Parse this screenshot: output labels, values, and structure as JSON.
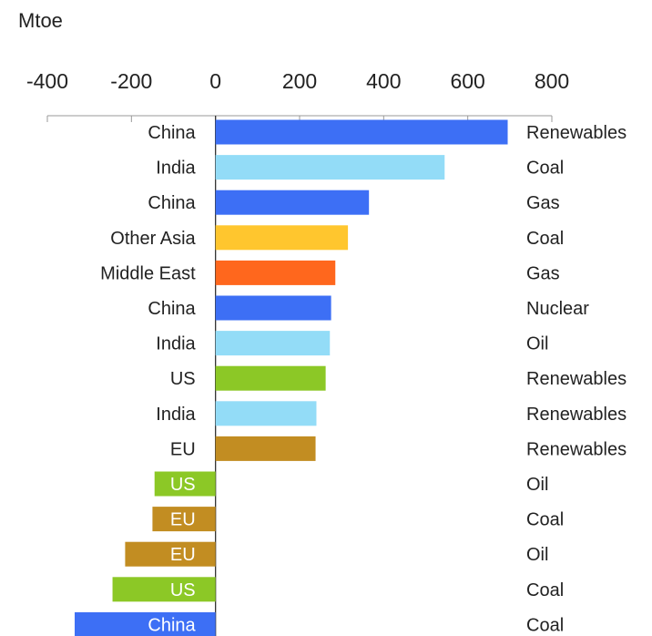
{
  "chart_data": {
    "type": "bar",
    "orientation": "horizontal",
    "unit_label": "Mtoe",
    "x_ticks": [
      -400,
      -200,
      0,
      200,
      400,
      600,
      800
    ],
    "xlim": [
      -400,
      800
    ],
    "grid": false,
    "colors": {
      "China": "#3d6ff5",
      "India": "#93dcf7",
      "Other Asia": "#ffc62e",
      "Middle East": "#ff671d",
      "US": "#8cc826",
      "EU": "#c28d22"
    },
    "bars": [
      {
        "region": "China",
        "fuel": "Renewables",
        "value": 695
      },
      {
        "region": "India",
        "fuel": "Coal",
        "value": 545
      },
      {
        "region": "China",
        "fuel": "Gas",
        "value": 365
      },
      {
        "region": "Other Asia",
        "fuel": "Coal",
        "value": 315
      },
      {
        "region": "Middle East",
        "fuel": "Gas",
        "value": 285
      },
      {
        "region": "China",
        "fuel": "Nuclear",
        "value": 275
      },
      {
        "region": "India",
        "fuel": "Oil",
        "value": 272
      },
      {
        "region": "US",
        "fuel": "Renewables",
        "value": 262
      },
      {
        "region": "India",
        "fuel": "Renewables",
        "value": 240
      },
      {
        "region": "EU",
        "fuel": "Renewables",
        "value": 238
      },
      {
        "region": "US",
        "fuel": "Oil",
        "value": -145
      },
      {
        "region": "EU",
        "fuel": "Coal",
        "value": -150
      },
      {
        "region": "EU",
        "fuel": "Oil",
        "value": -215
      },
      {
        "region": "US",
        "fuel": "Coal",
        "value": -245
      },
      {
        "region": "China",
        "fuel": "Coal",
        "value": -335
      }
    ]
  }
}
